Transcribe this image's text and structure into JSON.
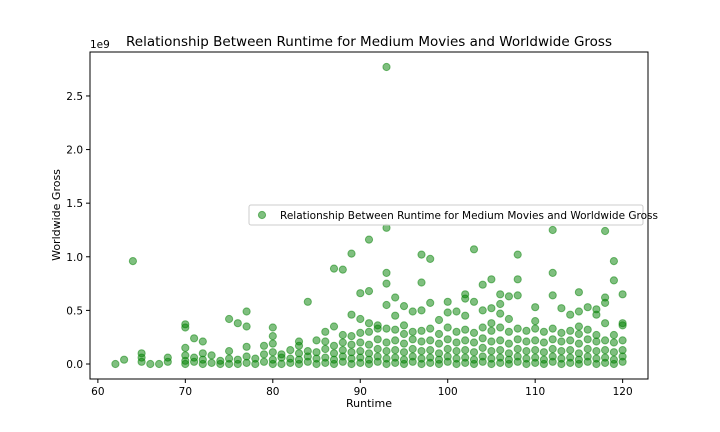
{
  "chart_data": {
    "type": "scatter",
    "title": "Relationship Between Runtime for Medium Movies and Worldwide Gross",
    "xlabel": "Runtime",
    "ylabel": "Worldwide Gross",
    "y_offset_label": "1e9",
    "xlim": [
      59.1,
      122.9
    ],
    "ylim": [
      -0.14,
      2.91
    ],
    "x_ticks": [
      60,
      70,
      80,
      90,
      100,
      110,
      120
    ],
    "x_tick_labels": [
      "60",
      "70",
      "80",
      "90",
      "100",
      "110",
      "120"
    ],
    "y_ticks": [
      0.0,
      0.5,
      1.0,
      1.5,
      2.0,
      2.5
    ],
    "y_tick_labels": [
      "0.0",
      "0.5",
      "1.0",
      "1.5",
      "2.0",
      "2.5"
    ],
    "grid": false,
    "legend_position": "center-right",
    "series": [
      {
        "name": "Relationship Between Runtime for Medium Movies and Worldwide Gross",
        "color": "#008000",
        "alpha": 0.5,
        "notes_units": "y in units of 1e9",
        "points": [
          [
            62,
            0.0
          ],
          [
            63,
            0.04
          ],
          [
            64,
            0.96
          ],
          [
            65,
            0.02
          ],
          [
            65,
            0.06
          ],
          [
            65,
            0.1
          ],
          [
            66,
            0.0
          ],
          [
            67,
            0.0
          ],
          [
            68,
            0.02
          ],
          [
            68,
            0.06
          ],
          [
            70,
            0.0
          ],
          [
            70,
            0.03
          ],
          [
            70,
            0.08
          ],
          [
            70,
            0.15
          ],
          [
            70,
            0.34
          ],
          [
            70,
            0.37
          ],
          [
            71,
            0.02
          ],
          [
            71,
            0.06
          ],
          [
            71,
            0.24
          ],
          [
            72,
            0.0
          ],
          [
            72,
            0.04
          ],
          [
            72,
            0.1
          ],
          [
            72,
            0.21
          ],
          [
            73,
            0.01
          ],
          [
            73,
            0.08
          ],
          [
            74,
            0.0
          ],
          [
            74,
            0.03
          ],
          [
            75,
            0.0
          ],
          [
            75,
            0.05
          ],
          [
            75,
            0.12
          ],
          [
            75,
            0.42
          ],
          [
            76,
            0.0
          ],
          [
            76,
            0.04
          ],
          [
            76,
            0.38
          ],
          [
            77,
            0.01
          ],
          [
            77,
            0.07
          ],
          [
            77,
            0.16
          ],
          [
            77,
            0.35
          ],
          [
            77,
            0.49
          ],
          [
            78,
            0.0
          ],
          [
            78,
            0.05
          ],
          [
            79,
            0.02
          ],
          [
            79,
            0.09
          ],
          [
            79,
            0.17
          ],
          [
            80,
            0.0
          ],
          [
            80,
            0.04
          ],
          [
            80,
            0.11
          ],
          [
            80,
            0.19
          ],
          [
            80,
            0.26
          ],
          [
            80,
            0.34
          ],
          [
            81,
            0.0
          ],
          [
            81,
            0.06
          ],
          [
            81,
            0.09
          ],
          [
            82,
            0.01
          ],
          [
            82,
            0.05
          ],
          [
            82,
            0.13
          ],
          [
            83,
            0.0
          ],
          [
            83,
            0.04
          ],
          [
            83,
            0.1
          ],
          [
            83,
            0.17
          ],
          [
            83,
            0.21
          ],
          [
            84,
            0.02
          ],
          [
            84,
            0.07
          ],
          [
            84,
            0.12
          ],
          [
            84,
            0.58
          ],
          [
            85,
            0.0
          ],
          [
            85,
            0.05
          ],
          [
            85,
            0.11
          ],
          [
            85,
            0.22
          ],
          [
            86,
            0.01
          ],
          [
            86,
            0.06
          ],
          [
            86,
            0.14
          ],
          [
            86,
            0.21
          ],
          [
            86,
            0.3
          ],
          [
            87,
            0.0
          ],
          [
            87,
            0.04
          ],
          [
            87,
            0.1
          ],
          [
            87,
            0.17
          ],
          [
            87,
            0.35
          ],
          [
            87,
            0.89
          ],
          [
            88,
            0.02
          ],
          [
            88,
            0.07
          ],
          [
            88,
            0.13
          ],
          [
            88,
            0.2
          ],
          [
            88,
            0.27
          ],
          [
            88,
            0.88
          ],
          [
            89,
            0.0
          ],
          [
            89,
            0.05
          ],
          [
            89,
            0.11
          ],
          [
            89,
            0.18
          ],
          [
            89,
            0.26
          ],
          [
            89,
            0.46
          ],
          [
            89,
            1.03
          ],
          [
            90,
            0.01
          ],
          [
            90,
            0.06
          ],
          [
            90,
            0.12
          ],
          [
            90,
            0.2
          ],
          [
            90,
            0.29
          ],
          [
            90,
            0.42
          ],
          [
            90,
            0.66
          ],
          [
            91,
            0.0
          ],
          [
            91,
            0.04
          ],
          [
            91,
            0.1
          ],
          [
            91,
            0.18
          ],
          [
            91,
            0.3
          ],
          [
            91,
            0.38
          ],
          [
            91,
            0.68
          ],
          [
            91,
            1.16
          ],
          [
            92,
            0.02
          ],
          [
            92,
            0.07
          ],
          [
            92,
            0.14
          ],
          [
            92,
            0.23
          ],
          [
            92,
            0.33
          ],
          [
            92,
            0.36
          ],
          [
            93,
            0.0
          ],
          [
            93,
            0.05
          ],
          [
            93,
            0.12
          ],
          [
            93,
            0.2
          ],
          [
            93,
            0.33
          ],
          [
            93,
            0.55
          ],
          [
            93,
            0.75
          ],
          [
            93,
            0.85
          ],
          [
            93,
            1.27
          ],
          [
            93,
            2.77
          ],
          [
            94,
            0.01
          ],
          [
            94,
            0.06
          ],
          [
            94,
            0.13
          ],
          [
            94,
            0.22
          ],
          [
            94,
            0.32
          ],
          [
            94,
            0.45
          ],
          [
            94,
            0.62
          ],
          [
            95,
            0.0
          ],
          [
            95,
            0.04
          ],
          [
            95,
            0.11
          ],
          [
            95,
            0.19
          ],
          [
            95,
            0.28
          ],
          [
            95,
            0.36
          ],
          [
            95,
            0.54
          ],
          [
            96,
            0.02
          ],
          [
            96,
            0.07
          ],
          [
            96,
            0.14
          ],
          [
            96,
            0.23
          ],
          [
            96,
            0.3
          ],
          [
            96,
            0.49
          ],
          [
            97,
            0.0
          ],
          [
            97,
            0.05
          ],
          [
            97,
            0.12
          ],
          [
            97,
            0.21
          ],
          [
            97,
            0.31
          ],
          [
            97,
            0.5
          ],
          [
            97,
            0.76
          ],
          [
            97,
            1.02
          ],
          [
            98,
            0.01
          ],
          [
            98,
            0.06
          ],
          [
            98,
            0.13
          ],
          [
            98,
            0.22
          ],
          [
            98,
            0.33
          ],
          [
            98,
            0.57
          ],
          [
            98,
            0.98
          ],
          [
            99,
            0.0
          ],
          [
            99,
            0.04
          ],
          [
            99,
            0.1
          ],
          [
            99,
            0.19
          ],
          [
            99,
            0.28
          ],
          [
            99,
            0.41
          ],
          [
            100,
            0.02
          ],
          [
            100,
            0.07
          ],
          [
            100,
            0.14
          ],
          [
            100,
            0.23
          ],
          [
            100,
            0.34
          ],
          [
            100,
            0.48
          ],
          [
            100,
            0.58
          ],
          [
            101,
            0.0
          ],
          [
            101,
            0.05
          ],
          [
            101,
            0.12
          ],
          [
            101,
            0.2
          ],
          [
            101,
            0.3
          ],
          [
            101,
            0.49
          ],
          [
            102,
            0.01
          ],
          [
            102,
            0.06
          ],
          [
            102,
            0.13
          ],
          [
            102,
            0.22
          ],
          [
            102,
            0.32
          ],
          [
            102,
            0.45
          ],
          [
            102,
            0.61
          ],
          [
            102,
            0.65
          ],
          [
            103,
            0.0
          ],
          [
            103,
            0.04
          ],
          [
            103,
            0.11
          ],
          [
            103,
            0.2
          ],
          [
            103,
            0.29
          ],
          [
            103,
            0.58
          ],
          [
            103,
            1.07
          ],
          [
            104,
            0.02
          ],
          [
            104,
            0.07
          ],
          [
            104,
            0.15
          ],
          [
            104,
            0.24
          ],
          [
            104,
            0.34
          ],
          [
            104,
            0.5
          ],
          [
            104,
            0.74
          ],
          [
            105,
            0.0
          ],
          [
            105,
            0.05
          ],
          [
            105,
            0.12
          ],
          [
            105,
            0.21
          ],
          [
            105,
            0.31
          ],
          [
            105,
            0.38
          ],
          [
            105,
            0.52
          ],
          [
            105,
            0.79
          ],
          [
            106,
            0.01
          ],
          [
            106,
            0.06
          ],
          [
            106,
            0.13
          ],
          [
            106,
            0.22
          ],
          [
            106,
            0.34
          ],
          [
            106,
            0.47
          ],
          [
            106,
            0.56
          ],
          [
            106,
            0.65
          ],
          [
            107,
            0.0
          ],
          [
            107,
            0.04
          ],
          [
            107,
            0.1
          ],
          [
            107,
            0.19
          ],
          [
            107,
            0.3
          ],
          [
            107,
            0.42
          ],
          [
            107,
            0.63
          ],
          [
            108,
            0.02
          ],
          [
            108,
            0.07
          ],
          [
            108,
            0.14
          ],
          [
            108,
            0.23
          ],
          [
            108,
            0.33
          ],
          [
            108,
            0.64
          ],
          [
            108,
            0.79
          ],
          [
            108,
            1.02
          ],
          [
            109,
            0.0
          ],
          [
            109,
            0.05
          ],
          [
            109,
            0.12
          ],
          [
            109,
            0.21
          ],
          [
            109,
            0.31
          ],
          [
            110,
            0.01
          ],
          [
            110,
            0.06
          ],
          [
            110,
            0.13
          ],
          [
            110,
            0.22
          ],
          [
            110,
            0.33
          ],
          [
            110,
            0.4
          ],
          [
            110,
            0.53
          ],
          [
            111,
            0.0
          ],
          [
            111,
            0.04
          ],
          [
            111,
            0.11
          ],
          [
            111,
            0.2
          ],
          [
            111,
            0.3
          ],
          [
            112,
            0.02
          ],
          [
            112,
            0.07
          ],
          [
            112,
            0.14
          ],
          [
            112,
            0.23
          ],
          [
            112,
            0.33
          ],
          [
            112,
            0.64
          ],
          [
            112,
            0.85
          ],
          [
            112,
            1.25
          ],
          [
            113,
            0.0
          ],
          [
            113,
            0.05
          ],
          [
            113,
            0.12
          ],
          [
            113,
            0.21
          ],
          [
            113,
            0.29
          ],
          [
            113,
            0.52
          ],
          [
            114,
            0.01
          ],
          [
            114,
            0.06
          ],
          [
            114,
            0.13
          ],
          [
            114,
            0.22
          ],
          [
            114,
            0.31
          ],
          [
            114,
            0.46
          ],
          [
            115,
            0.0
          ],
          [
            115,
            0.04
          ],
          [
            115,
            0.1
          ],
          [
            115,
            0.19
          ],
          [
            115,
            0.28
          ],
          [
            115,
            0.35
          ],
          [
            115,
            0.49
          ],
          [
            115,
            0.67
          ],
          [
            116,
            0.02
          ],
          [
            116,
            0.07
          ],
          [
            116,
            0.14
          ],
          [
            116,
            0.23
          ],
          [
            116,
            0.32
          ],
          [
            116,
            0.53
          ],
          [
            117,
            0.0
          ],
          [
            117,
            0.05
          ],
          [
            117,
            0.12
          ],
          [
            117,
            0.21
          ],
          [
            117,
            0.27
          ],
          [
            117,
            0.46
          ],
          [
            117,
            0.51
          ],
          [
            118,
            0.01
          ],
          [
            118,
            0.06
          ],
          [
            118,
            0.13
          ],
          [
            118,
            0.22
          ],
          [
            118,
            0.38
          ],
          [
            118,
            0.57
          ],
          [
            118,
            0.62
          ],
          [
            118,
            1.24
          ],
          [
            119,
            0.0
          ],
          [
            119,
            0.04
          ],
          [
            119,
            0.11
          ],
          [
            119,
            0.2
          ],
          [
            119,
            0.27
          ],
          [
            119,
            0.78
          ],
          [
            119,
            0.96
          ],
          [
            120,
            0.02
          ],
          [
            120,
            0.07
          ],
          [
            120,
            0.13
          ],
          [
            120,
            0.22
          ],
          [
            120,
            0.36
          ],
          [
            120,
            0.38
          ],
          [
            120,
            0.65
          ]
        ]
      }
    ]
  }
}
